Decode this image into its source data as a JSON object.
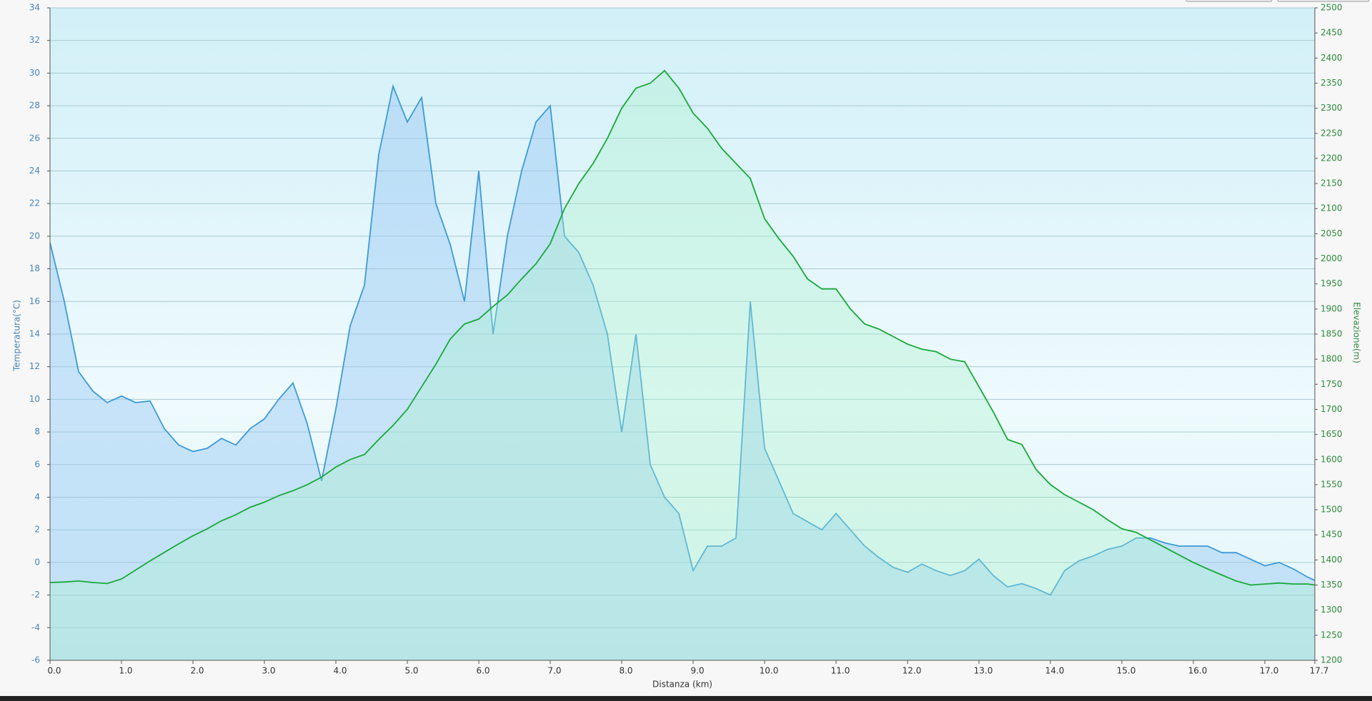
{
  "chart_data": {
    "type": "line",
    "x_label": "Distanza  (km)",
    "y_label": "Temperatura(°C)",
    "y2_label": "Elevazione(m)",
    "x": [
      0,
      0.2,
      0.4,
      0.6,
      0.8,
      1,
      1.2,
      1.4,
      1.6,
      1.8,
      2,
      2.2,
      2.4,
      2.6,
      2.8,
      3,
      3.2,
      3.4,
      3.6,
      3.8,
      4,
      4.2,
      4.4,
      4.6,
      4.8,
      5,
      5.2,
      5.4,
      5.6,
      5.8,
      6,
      6.2,
      6.4,
      6.6,
      6.8,
      7,
      7.2,
      7.4,
      7.6,
      7.8,
      8,
      8.2,
      8.4,
      8.6,
      8.8,
      9,
      9.2,
      9.4,
      9.6,
      9.8,
      10,
      10.2,
      10.4,
      10.6,
      10.8,
      11,
      11.2,
      11.4,
      11.6,
      11.8,
      12,
      12.2,
      12.4,
      12.6,
      12.8,
      13,
      13.2,
      13.4,
      13.6,
      13.8,
      14,
      14.2,
      14.4,
      14.6,
      14.8,
      15,
      15.2,
      15.4,
      15.6,
      15.8,
      16,
      16.2,
      16.4,
      16.6,
      16.8,
      17,
      17.2,
      17.4,
      17.6,
      17.7
    ],
    "series": [
      {
        "name": "Temperatura(°C)",
        "color": "#3d9ad8",
        "fill": "rgba(150,200,245,0.45)",
        "axis": "y",
        "values": [
          19.6,
          16,
          11.7,
          10.5,
          9.8,
          10.2,
          9.8,
          9.9,
          8.2,
          7.2,
          6.8,
          7,
          7.6,
          7.2,
          8.2,
          8.8,
          10,
          11,
          8.5,
          5,
          9.4,
          14.5,
          17,
          25,
          29.2,
          27,
          28.5,
          22,
          19.5,
          16,
          24,
          14,
          20,
          24,
          27,
          28,
          20,
          19,
          17,
          14,
          8,
          14,
          6,
          4,
          3,
          -0.5,
          1,
          1,
          1.5,
          16,
          7,
          5,
          3,
          2.5,
          2,
          3,
          2,
          1,
          0.3,
          -0.3,
          -0.6,
          -0.1,
          -0.5,
          -0.8,
          -0.5,
          0.2,
          -0.8,
          -1.5,
          -1.3,
          -1.6,
          -2,
          -0.5,
          0.1,
          0.4,
          0.8,
          1,
          1.5,
          1.5,
          1.2,
          1,
          1,
          1,
          0.6,
          0.6,
          0.2,
          -0.2,
          0,
          -0.4,
          -0.9,
          -1.1
        ]
      },
      {
        "name": "Elevazione(m)",
        "color": "#1aa83a",
        "fill": "rgba(170,240,200,0.35)",
        "axis": "y2",
        "values": [
          1355,
          1356,
          1358,
          1355,
          1353,
          1362,
          1380,
          1398,
          1415,
          1432,
          1448,
          1462,
          1478,
          1490,
          1505,
          1515,
          1528,
          1538,
          1550,
          1565,
          1585,
          1600,
          1610,
          1640,
          1668,
          1700,
          1745,
          1790,
          1840,
          1870,
          1880,
          1905,
          1928,
          1960,
          1990,
          2030,
          2100,
          2150,
          2190,
          2240,
          2300,
          2340,
          2350,
          2375,
          2340,
          2290,
          2260,
          2220,
          2190,
          2160,
          2080,
          2040,
          2005,
          1960,
          1940,
          1940,
          1900,
          1870,
          1860,
          1845,
          1830,
          1820,
          1815,
          1800,
          1795,
          1745,
          1695,
          1640,
          1630,
          1580,
          1550,
          1530,
          1515,
          1500,
          1480,
          1462,
          1455,
          1440,
          1425,
          1410,
          1395,
          1382,
          1370,
          1358,
          1350,
          1352,
          1354,
          1352,
          1352,
          1350
        ]
      }
    ],
    "xlim": [
      0,
      17.7
    ],
    "xticks": [
      {
        "value": 0,
        "label": "0.0"
      },
      {
        "value": 1,
        "label": "1.0"
      },
      {
        "value": 2,
        "label": "2.0"
      },
      {
        "value": 3,
        "label": "3.0"
      },
      {
        "value": 4,
        "label": "4.0"
      },
      {
        "value": 5,
        "label": "5.0"
      },
      {
        "value": 6,
        "label": "6.0"
      },
      {
        "value": 7,
        "label": "7.0"
      },
      {
        "value": 8,
        "label": "8.0"
      },
      {
        "value": 9,
        "label": "9.0"
      },
      {
        "value": 10,
        "label": "10.0"
      },
      {
        "value": 11,
        "label": "11.0"
      },
      {
        "value": 12,
        "label": "12.0"
      },
      {
        "value": 13,
        "label": "13.0"
      },
      {
        "value": 14,
        "label": "14.0"
      },
      {
        "value": 15,
        "label": "15.0"
      },
      {
        "value": 16,
        "label": "16.0"
      },
      {
        "value": 17,
        "label": "17.0"
      },
      17.7
    ],
    "ylim": [
      -6,
      34
    ],
    "yticks": [
      -6,
      -4,
      -2,
      0,
      2,
      4,
      6,
      8,
      10,
      12,
      14,
      16,
      18,
      20,
      22,
      24,
      26,
      28,
      30,
      32,
      34
    ],
    "y2lim": [
      1200,
      2500
    ],
    "y2ticks": [
      1200,
      1250,
      1300,
      1350,
      1400,
      1450,
      1500,
      1550,
      1600,
      1650,
      1700,
      1750,
      1800,
      1850,
      1900,
      1950,
      2000,
      2050,
      2100,
      2150,
      2200,
      2250,
      2300,
      2350,
      2400,
      2450,
      2500
    ],
    "grid": true
  }
}
